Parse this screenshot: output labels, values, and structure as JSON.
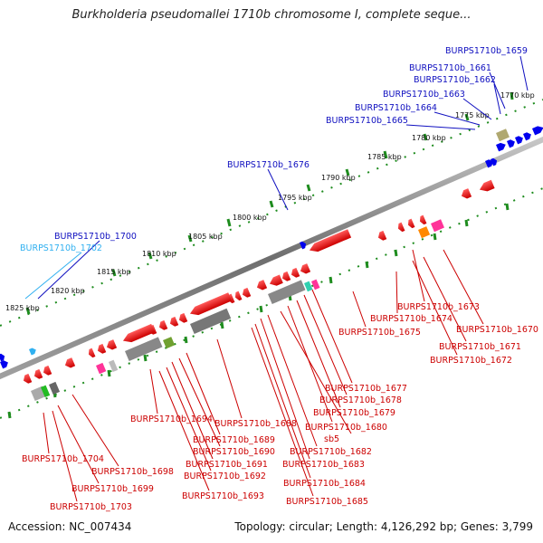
{
  "header": {
    "title": "Burkholderia pseudomallei 1710b chromosome I, complete seque..."
  },
  "footer": {
    "accession": "Accession: NC_007434",
    "summary": "Topology: circular; Length: 4,126,292 bp; Genes: 3,799"
  },
  "colors": {
    "forward_gene": "#0000ee",
    "reverse_gene": "#ee0000",
    "label_blue": "#1010c0",
    "label_cyan": "#30b0f0",
    "label_red": "#cc0000",
    "tick": "#1e8c1e",
    "backbone": "#888888"
  },
  "scale": {
    "ticks": [
      {
        "kbp": 1770,
        "label": "1770 kbp"
      },
      {
        "kbp": 1775,
        "label": "1775 kbp"
      },
      {
        "kbp": 1780,
        "label": "1780 kbp"
      },
      {
        "kbp": 1785,
        "label": "1785 kbp"
      },
      {
        "kbp": 1790,
        "label": "1790 kbp"
      },
      {
        "kbp": 1795,
        "label": "1795 kbp"
      },
      {
        "kbp": 1800,
        "label": "1800 kbp"
      },
      {
        "kbp": 1805,
        "label": "1805 kbp"
      },
      {
        "kbp": 1810,
        "label": "1810 kbp"
      },
      {
        "kbp": 1815,
        "label": "1815 kbp"
      },
      {
        "kbp": 1820,
        "label": "1820 kbp"
      },
      {
        "kbp": 1825,
        "label": "1825 kbp"
      }
    ]
  },
  "gene_labels": {
    "forward": [
      {
        "text": "BURPS1710b_1659",
        "color": "blue"
      },
      {
        "text": "BURPS1710b_1661",
        "color": "blue"
      },
      {
        "text": "BURPS1710b_1662",
        "color": "blue"
      },
      {
        "text": "BURPS1710b_1663",
        "color": "blue"
      },
      {
        "text": "BURPS1710b_1664",
        "color": "blue"
      },
      {
        "text": "BURPS1710b_1665",
        "color": "blue"
      },
      {
        "text": "BURPS1710b_1676",
        "color": "blue"
      },
      {
        "text": "BURPS1710b_1700",
        "color": "blue"
      },
      {
        "text": "BURPS1710b_1702",
        "color": "cyan"
      }
    ],
    "reverse": [
      {
        "text": "BURPS1710b_1673"
      },
      {
        "text": "BURPS1710b_1674"
      },
      {
        "text": "BURPS1710b_1670"
      },
      {
        "text": "BURPS1710b_1675"
      },
      {
        "text": "BURPS1710b_1671"
      },
      {
        "text": "BURPS1710b_1672"
      },
      {
        "text": "BURPS1710b_1677"
      },
      {
        "text": "BURPS1710b_1678"
      },
      {
        "text": "BURPS1710b_1679"
      },
      {
        "text": "BURPS1710b_1680"
      },
      {
        "text": "sb5"
      },
      {
        "text": "BURPS1710b_1682"
      },
      {
        "text": "BURPS1710b_1683"
      },
      {
        "text": "BURPS1710b_1684"
      },
      {
        "text": "BURPS1710b_1685"
      },
      {
        "text": "BURPS1710b_1694"
      },
      {
        "text": "BURPS1710b_1688"
      },
      {
        "text": "BURPS1710b_1689"
      },
      {
        "text": "BURPS1710b_1690"
      },
      {
        "text": "BURPS1710b_1691"
      },
      {
        "text": "BURPS1710b_1692"
      },
      {
        "text": "BURPS1710b_1693"
      },
      {
        "text": "BURPS1710b_1704"
      },
      {
        "text": "BURPS1710b_1698"
      },
      {
        "text": "BURPS1710b_1699"
      },
      {
        "text": "BURPS1710b_1703"
      }
    ]
  }
}
